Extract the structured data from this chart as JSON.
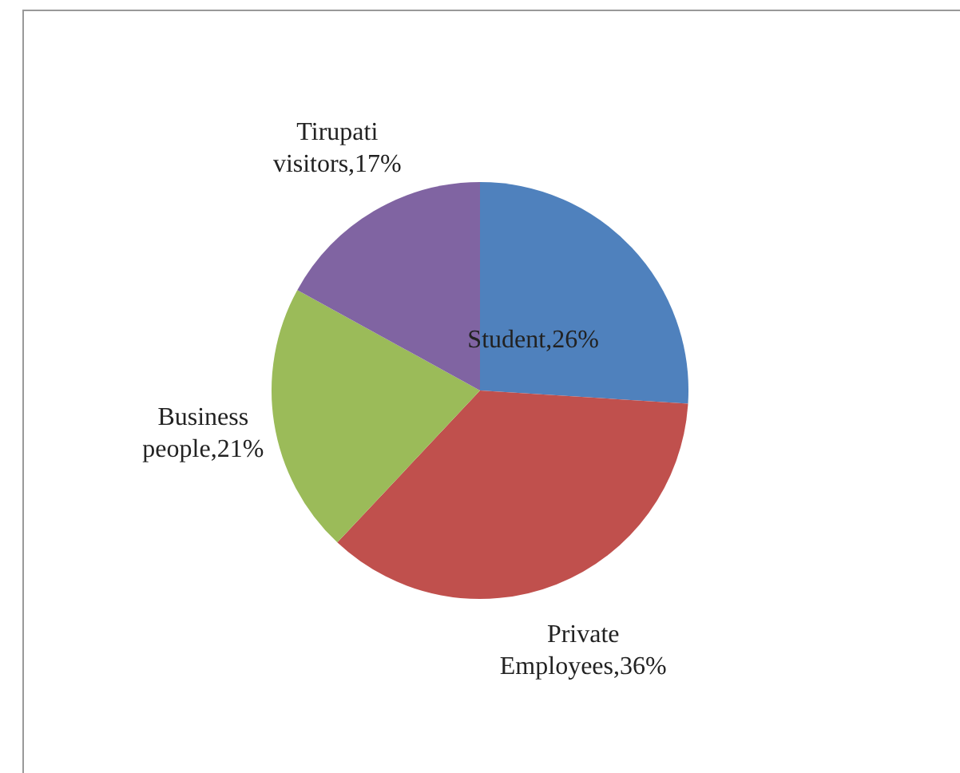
{
  "chart_data": {
    "type": "pie",
    "categories": [
      "Student",
      "Private Employees",
      "Business people",
      "Tirupati visitors"
    ],
    "values": [
      26,
      36,
      21,
      17
    ],
    "value_labels": [
      "26%",
      "36%",
      "21%",
      "17%"
    ],
    "colors": [
      "#4f81bd",
      "#c0504d",
      "#9bbb59",
      "#8064a2"
    ],
    "legend": false
  }
}
